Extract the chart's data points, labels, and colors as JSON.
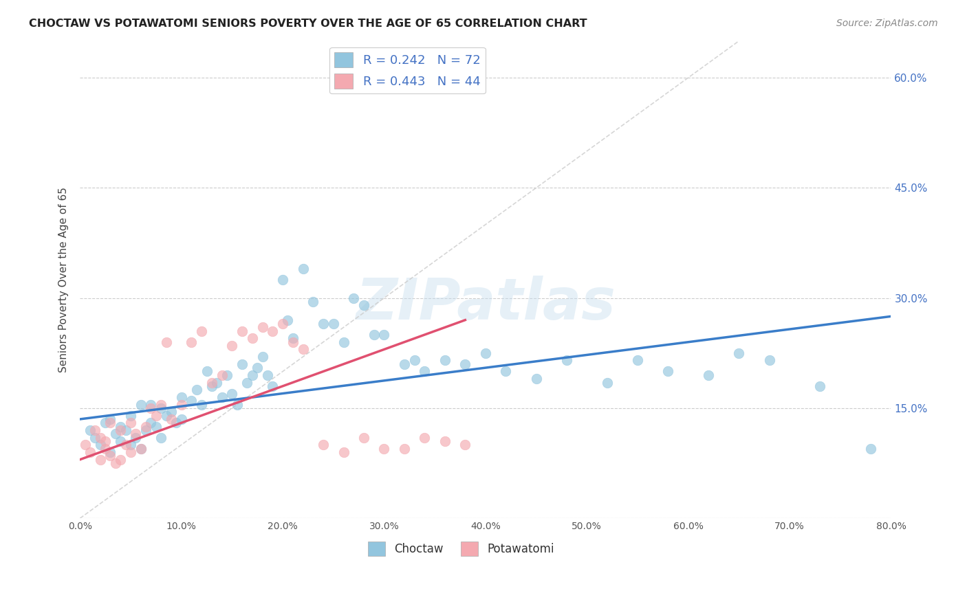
{
  "title": "CHOCTAW VS POTAWATOMI SENIORS POVERTY OVER THE AGE OF 65 CORRELATION CHART",
  "source": "Source: ZipAtlas.com",
  "ylabel": "Seniors Poverty Over the Age of 65",
  "xlim": [
    0.0,
    0.8
  ],
  "ylim": [
    0.0,
    0.65
  ],
  "xticks": [
    0.0,
    0.1,
    0.2,
    0.3,
    0.4,
    0.5,
    0.6,
    0.7,
    0.8
  ],
  "yticks": [
    0.0,
    0.15,
    0.3,
    0.45,
    0.6
  ],
  "ytick_labels": [
    "",
    "15.0%",
    "30.0%",
    "45.0%",
    "60.0%"
  ],
  "xtick_labels": [
    "0.0%",
    "",
    "",
    "",
    "",
    "",
    "",
    "",
    "80.0%"
  ],
  "choctaw_color": "#92C5DE",
  "potawatomi_color": "#F4A9B0",
  "choctaw_line_color": "#3A7DC9",
  "potawatomi_line_color": "#E05070",
  "diagonal_color": "#CCCCCC",
  "R_choctaw": 0.242,
  "N_choctaw": 72,
  "R_potawatomi": 0.443,
  "N_potawatomi": 44,
  "watermark": "ZIPatlas",
  "choctaw_x": [
    0.01,
    0.015,
    0.02,
    0.025,
    0.03,
    0.03,
    0.035,
    0.04,
    0.04,
    0.045,
    0.05,
    0.05,
    0.055,
    0.06,
    0.06,
    0.065,
    0.07,
    0.07,
    0.075,
    0.08,
    0.08,
    0.085,
    0.09,
    0.095,
    0.1,
    0.1,
    0.11,
    0.115,
    0.12,
    0.125,
    0.13,
    0.135,
    0.14,
    0.145,
    0.15,
    0.155,
    0.16,
    0.165,
    0.17,
    0.175,
    0.18,
    0.185,
    0.19,
    0.2,
    0.205,
    0.21,
    0.22,
    0.23,
    0.24,
    0.25,
    0.26,
    0.27,
    0.28,
    0.29,
    0.3,
    0.32,
    0.33,
    0.34,
    0.36,
    0.38,
    0.4,
    0.42,
    0.45,
    0.48,
    0.52,
    0.55,
    0.58,
    0.62,
    0.65,
    0.68,
    0.73,
    0.78
  ],
  "choctaw_y": [
    0.12,
    0.11,
    0.1,
    0.13,
    0.135,
    0.09,
    0.115,
    0.105,
    0.125,
    0.12,
    0.1,
    0.14,
    0.11,
    0.095,
    0.155,
    0.12,
    0.13,
    0.155,
    0.125,
    0.11,
    0.15,
    0.14,
    0.145,
    0.13,
    0.165,
    0.135,
    0.16,
    0.175,
    0.155,
    0.2,
    0.18,
    0.185,
    0.165,
    0.195,
    0.17,
    0.155,
    0.21,
    0.185,
    0.195,
    0.205,
    0.22,
    0.195,
    0.18,
    0.325,
    0.27,
    0.245,
    0.34,
    0.295,
    0.265,
    0.265,
    0.24,
    0.3,
    0.29,
    0.25,
    0.25,
    0.21,
    0.215,
    0.2,
    0.215,
    0.21,
    0.225,
    0.2,
    0.19,
    0.215,
    0.185,
    0.215,
    0.2,
    0.195,
    0.225,
    0.215,
    0.18,
    0.095
  ],
  "potawatomi_x": [
    0.005,
    0.01,
    0.015,
    0.02,
    0.02,
    0.025,
    0.025,
    0.03,
    0.03,
    0.035,
    0.04,
    0.04,
    0.045,
    0.05,
    0.05,
    0.055,
    0.06,
    0.065,
    0.07,
    0.075,
    0.08,
    0.085,
    0.09,
    0.1,
    0.11,
    0.12,
    0.13,
    0.14,
    0.15,
    0.16,
    0.17,
    0.18,
    0.19,
    0.2,
    0.21,
    0.22,
    0.24,
    0.26,
    0.28,
    0.3,
    0.32,
    0.34,
    0.36,
    0.38
  ],
  "potawatomi_y": [
    0.1,
    0.09,
    0.12,
    0.11,
    0.08,
    0.095,
    0.105,
    0.085,
    0.13,
    0.075,
    0.08,
    0.12,
    0.1,
    0.09,
    0.13,
    0.115,
    0.095,
    0.125,
    0.15,
    0.14,
    0.155,
    0.24,
    0.135,
    0.155,
    0.24,
    0.255,
    0.185,
    0.195,
    0.235,
    0.255,
    0.245,
    0.26,
    0.255,
    0.265,
    0.24,
    0.23,
    0.1,
    0.09,
    0.11,
    0.095,
    0.095,
    0.11,
    0.105,
    0.1
  ],
  "choctaw_line_x0": 0.0,
  "choctaw_line_y0": 0.135,
  "choctaw_line_x1": 0.8,
  "choctaw_line_y1": 0.275,
  "potawatomi_line_x0": 0.0,
  "potawatomi_line_y0": 0.08,
  "potawatomi_line_x1": 0.38,
  "potawatomi_line_y1": 0.27
}
